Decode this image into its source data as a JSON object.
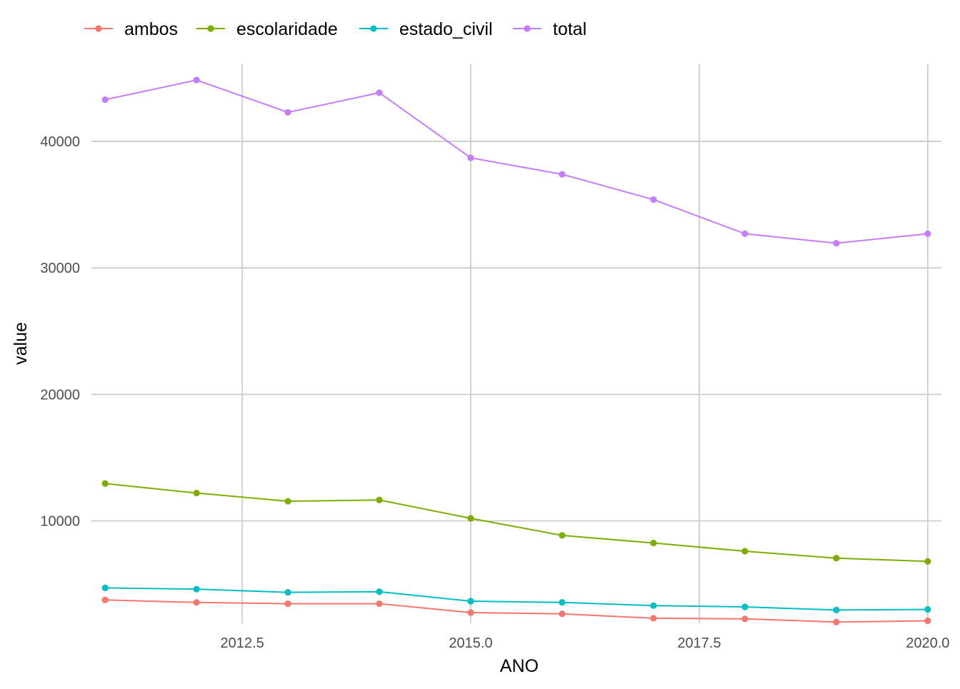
{
  "chart_data": {
    "type": "line",
    "xlabel": "ANO",
    "ylabel": "value",
    "x": [
      2011,
      2012,
      2013,
      2014,
      2015,
      2016,
      2017,
      2018,
      2019,
      2020
    ],
    "xlim": [
      2010.85,
      2020.15
    ],
    "ylim": [
      1900,
      46100
    ],
    "x_ticks": [
      2012.5,
      2015.0,
      2017.5,
      2020.0
    ],
    "x_tick_labels": [
      "2012.5",
      "2015.0",
      "2017.5",
      "2020.0"
    ],
    "y_ticks": [
      10000,
      20000,
      30000,
      40000
    ],
    "y_tick_labels": [
      "10000",
      "20000",
      "30000",
      "40000"
    ],
    "grid": true,
    "legend_position": "top-left",
    "series": [
      {
        "name": "ambos",
        "color": "#F8766D",
        "values": [
          3750,
          3550,
          3450,
          3450,
          2750,
          2650,
          2300,
          2250,
          2000,
          2100
        ]
      },
      {
        "name": "escolaridade",
        "color": "#7CAE00",
        "values": [
          12950,
          12200,
          11550,
          11650,
          10200,
          8850,
          8250,
          7600,
          7050,
          6800
        ]
      },
      {
        "name": "estado_civil",
        "color": "#00BFC4",
        "values": [
          4700,
          4600,
          4350,
          4400,
          3650,
          3550,
          3300,
          3200,
          2950,
          3000
        ]
      },
      {
        "name": "total",
        "color": "#C77CFF",
        "values": [
          43300,
          44850,
          42300,
          43850,
          38700,
          37400,
          35400,
          32700,
          31950,
          32700
        ]
      }
    ]
  }
}
